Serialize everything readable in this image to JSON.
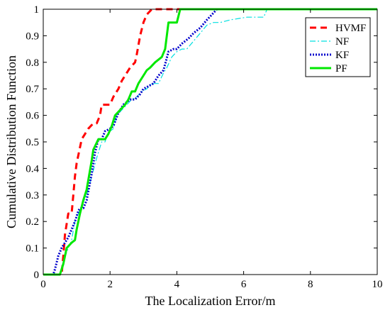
{
  "chart_data": {
    "type": "line",
    "title": "",
    "xlabel": "The Localization Error/m",
    "ylabel": "Cumulative Distribution Function",
    "xlim": [
      0,
      10
    ],
    "ylim": [
      0,
      1
    ],
    "xticks": [
      0,
      2,
      4,
      6,
      8,
      10
    ],
    "yticks": [
      0,
      0.1,
      0.2,
      0.3,
      0.4,
      0.5,
      0.6,
      0.7,
      0.8,
      0.9,
      1
    ],
    "grid": false,
    "legend_position": "top-right",
    "series": [
      {
        "name": "HVMF",
        "color": "#ff0000",
        "dash": "dashed",
        "x": [
          0,
          0.55,
          0.6,
          0.65,
          0.75,
          0.85,
          0.9,
          0.95,
          1.0,
          1.05,
          1.15,
          1.25,
          1.35,
          1.5,
          1.6,
          1.7,
          1.75,
          1.85,
          2.0,
          2.1,
          2.25,
          2.35,
          2.45,
          2.6,
          2.75,
          2.8,
          2.9,
          3.0,
          3.1,
          3.25,
          3.5,
          3.8,
          10
        ],
        "y": [
          0,
          0,
          0.07,
          0.15,
          0.23,
          0.23,
          0.3,
          0.37,
          0.42,
          0.45,
          0.51,
          0.53,
          0.55,
          0.57,
          0.57,
          0.6,
          0.64,
          0.64,
          0.64,
          0.67,
          0.7,
          0.73,
          0.75,
          0.78,
          0.8,
          0.83,
          0.9,
          0.95,
          0.98,
          1.0,
          1.0,
          1.0,
          1.0
        ]
      },
      {
        "name": "NF",
        "color": "#00e0e0",
        "dash": "dashdot",
        "x": [
          0,
          0.5,
          0.6,
          0.75,
          0.85,
          0.95,
          1.05,
          1.15,
          1.3,
          1.45,
          1.6,
          1.75,
          1.85,
          1.9,
          2.0,
          2.1,
          2.2,
          2.35,
          2.5,
          2.65,
          2.8,
          2.95,
          3.1,
          3.25,
          3.45,
          3.6,
          3.7,
          3.85,
          4.0,
          4.15,
          4.3,
          4.5,
          4.7,
          4.9,
          5.1,
          5.3,
          5.6,
          6.1,
          6.6,
          6.7,
          10
        ],
        "y": [
          0,
          0,
          0.05,
          0.1,
          0.13,
          0.2,
          0.23,
          0.26,
          0.3,
          0.37,
          0.44,
          0.5,
          0.5,
          0.52,
          0.54,
          0.55,
          0.6,
          0.62,
          0.64,
          0.66,
          0.67,
          0.69,
          0.7,
          0.72,
          0.72,
          0.76,
          0.78,
          0.82,
          0.84,
          0.85,
          0.85,
          0.88,
          0.91,
          0.94,
          0.95,
          0.95,
          0.96,
          0.97,
          0.97,
          1.0,
          1.0
        ]
      },
      {
        "name": "KF",
        "color": "#0000cc",
        "dash": "dotted",
        "x": [
          0,
          0.3,
          0.35,
          0.45,
          0.55,
          0.65,
          0.75,
          0.85,
          0.95,
          1.05,
          1.1,
          1.2,
          1.3,
          1.45,
          1.55,
          1.65,
          1.75,
          1.85,
          2.0,
          2.1,
          2.25,
          2.4,
          2.5,
          2.6,
          2.75,
          2.9,
          3.0,
          3.15,
          3.3,
          3.45,
          3.6,
          3.75,
          3.9,
          4.0,
          4.15,
          4.35,
          4.5,
          4.7,
          4.9,
          5.05,
          5.2,
          10
        ],
        "y": [
          0,
          0,
          0.02,
          0.07,
          0.1,
          0.12,
          0.14,
          0.17,
          0.2,
          0.24,
          0.25,
          0.25,
          0.28,
          0.38,
          0.46,
          0.51,
          0.51,
          0.54,
          0.55,
          0.56,
          0.61,
          0.64,
          0.65,
          0.66,
          0.66,
          0.68,
          0.7,
          0.71,
          0.72,
          0.75,
          0.77,
          0.84,
          0.85,
          0.85,
          0.87,
          0.89,
          0.91,
          0.93,
          0.96,
          0.98,
          1.0,
          1.0
        ]
      },
      {
        "name": "PF",
        "color": "#00e800",
        "dash": "solid",
        "x": [
          0,
          0.5,
          0.6,
          0.7,
          0.85,
          0.95,
          1.0,
          1.1,
          1.2,
          1.3,
          1.45,
          1.5,
          1.65,
          1.75,
          1.85,
          1.95,
          2.05,
          2.15,
          2.3,
          2.45,
          2.55,
          2.65,
          2.75,
          2.85,
          3.0,
          3.1,
          3.2,
          3.35,
          3.45,
          3.55,
          3.65,
          3.75,
          3.85,
          4.0,
          4.1,
          10
        ],
        "y": [
          0,
          0,
          0.04,
          0.1,
          0.12,
          0.13,
          0.17,
          0.23,
          0.28,
          0.32,
          0.43,
          0.47,
          0.51,
          0.51,
          0.51,
          0.53,
          0.56,
          0.6,
          0.62,
          0.64,
          0.66,
          0.69,
          0.69,
          0.72,
          0.75,
          0.77,
          0.78,
          0.8,
          0.81,
          0.82,
          0.85,
          0.95,
          0.95,
          0.95,
          1.0,
          1.0
        ]
      }
    ]
  }
}
